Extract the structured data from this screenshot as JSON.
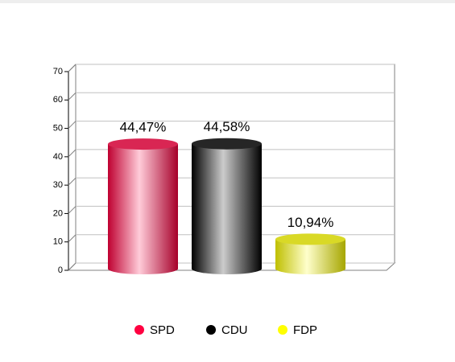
{
  "chart_data": {
    "type": "bar",
    "categories": [
      "SPD",
      "CDU",
      "FDP"
    ],
    "values": [
      44.47,
      44.58,
      10.94
    ],
    "value_labels": [
      "44,47%",
      "44,58%",
      "10,94%"
    ],
    "colors": [
      "#ff0040",
      "#000000",
      "#ffff00"
    ],
    "ylim": [
      0,
      70
    ],
    "yticks": [
      0,
      10,
      20,
      30,
      40,
      50,
      60,
      70
    ],
    "grid": true
  }
}
